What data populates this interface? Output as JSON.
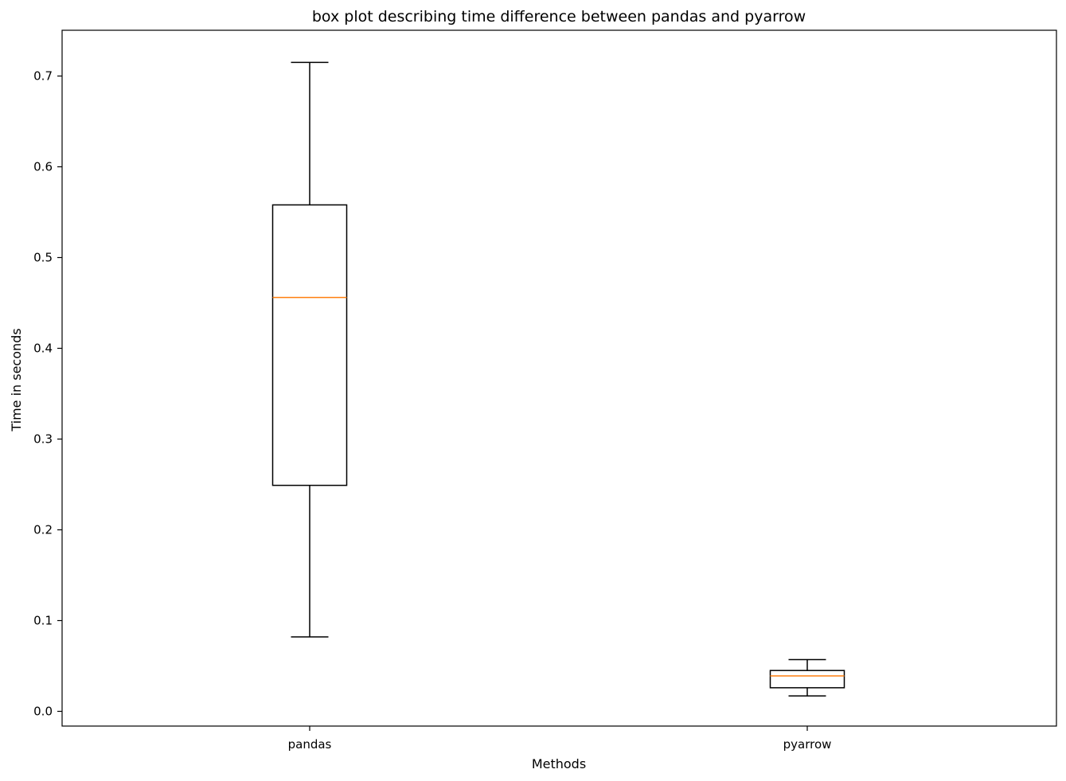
{
  "chart_data": {
    "type": "box",
    "title": "box plot describing time difference between pandas and pyarrow",
    "xlabel": "Methods",
    "ylabel": "Time in seconds",
    "categories": [
      "pandas",
      "pyarrow"
    ],
    "boxes": [
      {
        "name": "pandas",
        "whisker_low": 0.082,
        "q1": 0.249,
        "median": 0.456,
        "q3": 0.558,
        "whisker_high": 0.715
      },
      {
        "name": "pyarrow",
        "whisker_low": 0.017,
        "q1": 0.026,
        "median": 0.039,
        "q3": 0.045,
        "whisker_high": 0.057
      }
    ],
    "ylim": [
      -0.017,
      0.75
    ],
    "yticks": [
      0.0,
      0.1,
      0.2,
      0.3,
      0.4,
      0.5,
      0.6,
      0.7
    ],
    "ytick_labels": [
      "0.0",
      "0.1",
      "0.2",
      "0.3",
      "0.4",
      "0.5",
      "0.6",
      "0.7"
    ],
    "grid": false,
    "colors": {
      "box": "#000000",
      "median": "#ff7f0e",
      "axes": "#000000"
    }
  }
}
